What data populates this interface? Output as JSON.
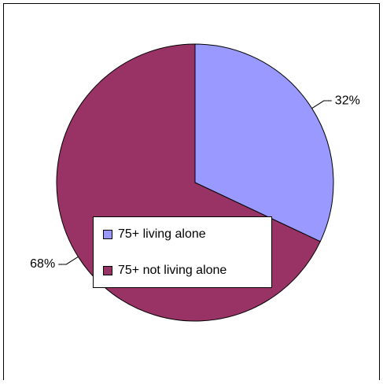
{
  "chart_data": {
    "type": "pie",
    "categories": [
      "75+ living alone",
      "75+ not living alone"
    ],
    "values": [
      32,
      68
    ],
    "value_labels": [
      "32%",
      "68%"
    ],
    "colors": [
      "#9999ff",
      "#993366"
    ],
    "legend": "center"
  }
}
